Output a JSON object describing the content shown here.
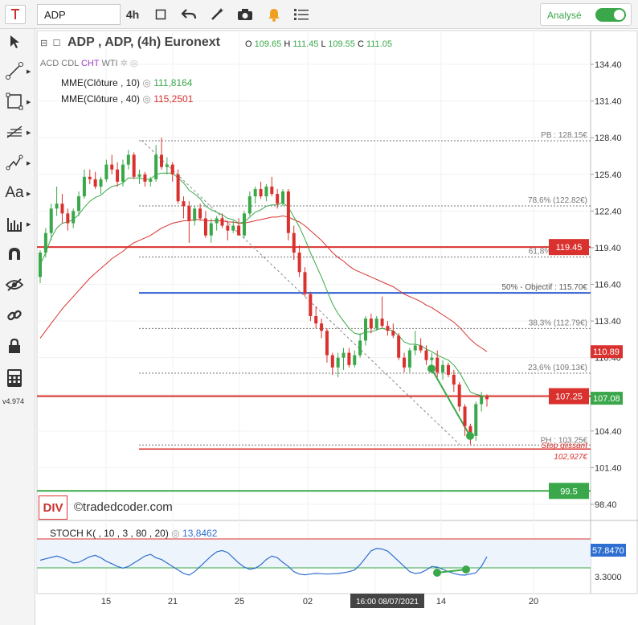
{
  "toolbar": {
    "cursor_icon": "text-cursor-icon",
    "symbol_value": "ADP",
    "timeframe": "4h",
    "analyse_label": "Analysé",
    "analyse_on": true
  },
  "header": {
    "title": "ADP , ADP, (4h) Euronext",
    "o_label": "O",
    "o_value": "109.65",
    "h_label": "H",
    "h_value": "111.45",
    "l_label": "L",
    "l_value": "109.55",
    "c_label": "C",
    "c_value": "111.05",
    "chart_types": [
      "ACD",
      "CDL",
      "CHT",
      "WTI"
    ]
  },
  "indicators": [
    {
      "label": "MME(Clôture , 10)",
      "value": "111,8164",
      "color": "#3aa84a"
    },
    {
      "label": "MME(Clôture , 40)",
      "value": "115,2501",
      "color": "#d9322e"
    }
  ],
  "stoch": {
    "label": "STOCH K( , 10 , 3 , 80 , 20)",
    "value": "13,8462",
    "value_color": "#2f6fd1"
  },
  "sidebar": {
    "version": "v4.974"
  },
  "watermark": {
    "badge": "DIV",
    "text": "©tradedcoder.com"
  },
  "colors": {
    "up": "#3aa84a",
    "down": "#d9322e",
    "blue": "#2f5fd1",
    "grid": "#ececec"
  },
  "chart_data": {
    "type": "candlestick",
    "y_ticks": [
      "134.40",
      "131.40",
      "128.40",
      "125.40",
      "122.40",
      "119.40",
      "116.40",
      "113.40",
      "110.40",
      "107.40",
      "104.40",
      "101.40",
      "98.40"
    ],
    "x_ticks": [
      "15",
      "21",
      "25",
      "02",
      "08",
      "14",
      "20"
    ],
    "crosshair_label": "16:00 08/07/2021",
    "levels": [
      {
        "label": "PB : 128.15€",
        "value": 128.15
      },
      {
        "label": "78,6% (122.82€)",
        "value": 122.82
      },
      {
        "label": "61,8% (118.64€)",
        "value": 118.64
      },
      {
        "label": "50% - Objectif : 115.70€",
        "value": 115.7
      },
      {
        "label": "38,3% (112.79€)",
        "value": 112.79
      },
      {
        "label": "23,6% (109.13€)",
        "value": 109.13
      },
      {
        "label": "PH : 103.25€",
        "value": 103.25
      },
      {
        "label": "Stop glissant",
        "value": 102.927
      },
      {
        "label": "102,927€",
        "value": 102.927
      }
    ],
    "price_badges": [
      {
        "label": "119.45",
        "value": 119.45,
        "color": "#d9322e"
      },
      {
        "label": "110.89",
        "value": 110.89,
        "color": "#d9322e"
      },
      {
        "label": "107.25",
        "value": 107.25,
        "color": "#d9322e"
      },
      {
        "label": "107.08",
        "value": 107.08,
        "color": "#3aa84a"
      },
      {
        "label": "99.5",
        "value": 99.5,
        "color": "#3aa84a"
      }
    ],
    "stoch_ticks": [
      "57.8470",
      "3.3000"
    ],
    "candles": [
      [
        117.0,
        119.2,
        116.5,
        119.0
      ],
      [
        119.0,
        121.0,
        118.6,
        120.6
      ],
      [
        120.6,
        123.0,
        120.0,
        122.6
      ],
      [
        122.6,
        124.4,
        122.0,
        123.0
      ],
      [
        123.0,
        123.8,
        121.4,
        122.2
      ],
      [
        122.2,
        122.6,
        120.8,
        121.4
      ],
      [
        121.4,
        122.6,
        121.0,
        122.4
      ],
      [
        122.4,
        124.0,
        122.0,
        123.6
      ],
      [
        123.6,
        125.8,
        123.4,
        125.2
      ],
      [
        125.2,
        125.8,
        124.6,
        125.0
      ],
      [
        125.0,
        125.6,
        124.2,
        124.4
      ],
      [
        124.4,
        125.2,
        123.8,
        125.0
      ],
      [
        125.0,
        126.6,
        124.8,
        126.2
      ],
      [
        126.2,
        127.0,
        125.4,
        125.8
      ],
      [
        125.8,
        126.4,
        124.4,
        124.8
      ],
      [
        124.8,
        126.6,
        124.4,
        126.2
      ],
      [
        126.2,
        127.4,
        125.8,
        127.0
      ],
      [
        127.0,
        127.2,
        125.0,
        125.2
      ],
      [
        125.2,
        125.8,
        124.6,
        125.4
      ],
      [
        125.4,
        125.6,
        124.4,
        124.8
      ],
      [
        124.8,
        125.2,
        124.4,
        125.0
      ],
      [
        125.0,
        127.8,
        124.8,
        127.0
      ],
      [
        127.0,
        128.4,
        125.8,
        126.0
      ],
      [
        126.0,
        126.8,
        125.4,
        126.2
      ],
      [
        126.2,
        126.4,
        124.8,
        125.4
      ],
      [
        125.4,
        125.8,
        123.0,
        123.2
      ],
      [
        123.2,
        123.6,
        121.8,
        122.8
      ],
      [
        122.8,
        123.2,
        119.8,
        121.6
      ],
      [
        121.6,
        122.8,
        121.2,
        122.6
      ],
      [
        122.6,
        123.0,
        121.6,
        121.8
      ],
      [
        121.8,
        122.4,
        120.2,
        120.4
      ],
      [
        120.4,
        121.8,
        119.8,
        121.4
      ],
      [
        121.4,
        122.0,
        120.8,
        121.8
      ],
      [
        121.8,
        122.2,
        121.0,
        121.2
      ],
      [
        121.2,
        121.6,
        120.0,
        120.8
      ],
      [
        120.8,
        121.6,
        120.6,
        121.2
      ],
      [
        121.2,
        121.8,
        120.4,
        120.4
      ],
      [
        120.4,
        122.4,
        120.2,
        122.2
      ],
      [
        122.2,
        124.0,
        122.0,
        123.6
      ],
      [
        123.6,
        124.4,
        123.0,
        124.2
      ],
      [
        124.2,
        124.8,
        123.4,
        123.6
      ],
      [
        123.6,
        124.6,
        123.2,
        124.4
      ],
      [
        124.4,
        125.2,
        123.6,
        123.8
      ],
      [
        123.8,
        124.2,
        122.6,
        123.0
      ],
      [
        123.0,
        124.2,
        122.8,
        124.0
      ],
      [
        124.0,
        124.2,
        120.0,
        120.6
      ],
      [
        120.6,
        121.2,
        118.4,
        119.0
      ],
      [
        119.0,
        119.6,
        117.0,
        117.4
      ],
      [
        117.4,
        117.8,
        115.4,
        115.6
      ],
      [
        115.6,
        115.8,
        113.4,
        113.8
      ],
      [
        113.8,
        114.6,
        112.8,
        113.2
      ],
      [
        113.2,
        113.6,
        112.0,
        112.6
      ],
      [
        112.6,
        112.8,
        110.0,
        110.6
      ],
      [
        110.6,
        110.8,
        109.0,
        109.6
      ],
      [
        109.6,
        110.8,
        108.8,
        110.4
      ],
      [
        110.4,
        111.2,
        109.4,
        110.8
      ],
      [
        110.8,
        111.2,
        109.6,
        109.8
      ],
      [
        109.8,
        111.0,
        109.6,
        110.6
      ],
      [
        110.6,
        112.4,
        110.4,
        111.8
      ],
      [
        111.8,
        113.8,
        111.4,
        113.6
      ],
      [
        113.6,
        114.0,
        112.4,
        112.8
      ],
      [
        112.8,
        113.8,
        112.6,
        113.6
      ],
      [
        113.6,
        115.4,
        112.8,
        113.0
      ],
      [
        113.0,
        113.4,
        112.2,
        112.6
      ],
      [
        112.6,
        113.2,
        112.0,
        112.2
      ],
      [
        112.2,
        112.4,
        110.2,
        110.4
      ],
      [
        110.4,
        110.8,
        109.2,
        109.6
      ],
      [
        109.6,
        111.2,
        109.2,
        111.0
      ],
      [
        111.0,
        112.6,
        110.6,
        111.4
      ],
      [
        111.4,
        112.0,
        110.8,
        111.0
      ],
      [
        111.0,
        111.4,
        109.8,
        110.2
      ],
      [
        110.2,
        110.8,
        109.4,
        110.4
      ],
      [
        110.4,
        111.0,
        108.8,
        109.2
      ],
      [
        109.2,
        110.2,
        108.6,
        109.8
      ],
      [
        109.8,
        110.0,
        108.8,
        109.0
      ],
      [
        109.0,
        109.4,
        107.6,
        108.2
      ],
      [
        108.2,
        108.4,
        106.0,
        106.4
      ],
      [
        106.4,
        106.6,
        104.0,
        104.8
      ],
      [
        104.8,
        105.0,
        103.3,
        104.0
      ],
      [
        104.0,
        106.8,
        103.6,
        106.6
      ],
      [
        106.6,
        107.6,
        106.0,
        107.2
      ],
      [
        107.2,
        107.4,
        106.4,
        107.0
      ]
    ],
    "ema10": [
      118.0,
      119.0,
      120.2,
      121.0,
      121.4,
      121.5,
      121.7,
      122.1,
      122.7,
      123.2,
      123.5,
      123.7,
      124.1,
      124.4,
      124.5,
      124.7,
      125.1,
      125.1,
      125.1,
      125.0,
      125.0,
      125.4,
      125.5,
      125.5,
      125.5,
      125.1,
      124.7,
      124.1,
      123.8,
      123.4,
      122.8,
      122.5,
      122.3,
      122.1,
      121.8,
      121.7,
      121.4,
      121.5,
      121.9,
      122.3,
      122.5,
      122.8,
      122.9,
      122.9,
      123.1,
      122.7,
      121.9,
      121.1,
      120.1,
      119.0,
      118.0,
      117.0,
      115.9,
      114.8,
      114.0,
      113.4,
      112.8,
      112.4,
      112.3,
      112.5,
      112.5,
      112.7,
      112.8,
      112.7,
      112.6,
      112.2,
      111.7,
      111.5,
      111.5,
      111.4,
      111.1,
      110.9,
      110.6,
      110.4,
      110.2,
      109.8,
      109.2,
      108.4,
      107.6,
      107.4,
      107.3,
      107.2
    ],
    "ema40": [
      112.0,
      112.6,
      113.2,
      113.8,
      114.4,
      114.9,
      115.4,
      115.9,
      116.4,
      116.9,
      117.3,
      117.7,
      118.1,
      118.5,
      118.8,
      119.1,
      119.5,
      119.8,
      120.0,
      120.2,
      120.4,
      120.7,
      121.0,
      121.2,
      121.4,
      121.5,
      121.6,
      121.6,
      121.7,
      121.7,
      121.6,
      121.6,
      121.6,
      121.6,
      121.5,
      121.5,
      121.4,
      121.4,
      121.5,
      121.6,
      121.7,
      121.8,
      121.9,
      121.9,
      122.0,
      121.9,
      121.7,
      121.5,
      121.2,
      120.8,
      120.4,
      120.0,
      119.5,
      119.0,
      118.6,
      118.3,
      117.9,
      117.6,
      117.4,
      117.2,
      117.0,
      116.8,
      116.6,
      116.4,
      116.2,
      115.9,
      115.6,
      115.4,
      115.2,
      115.0,
      114.7,
      114.5,
      114.2,
      113.9,
      113.6,
      113.3,
      112.9,
      112.4,
      111.9,
      111.5,
      111.2,
      110.9
    ],
    "stoch_values": [
      48,
      52,
      56,
      60,
      55,
      48,
      40,
      42,
      50,
      58,
      62,
      55,
      45,
      38,
      30,
      25,
      30,
      40,
      50,
      60,
      65,
      55,
      50,
      40,
      30,
      20,
      10,
      5,
      15,
      30,
      45,
      60,
      72,
      76,
      70,
      55,
      40,
      28,
      22,
      25,
      35,
      50,
      60,
      55,
      42,
      30,
      15,
      8,
      6,
      8,
      10,
      9,
      8,
      9,
      10,
      12,
      15,
      20,
      35,
      55,
      75,
      82,
      80,
      74,
      60,
      45,
      30,
      15,
      10,
      12,
      20,
      30,
      28,
      22,
      15,
      10,
      6,
      5,
      8,
      12,
      30,
      58
    ]
  }
}
